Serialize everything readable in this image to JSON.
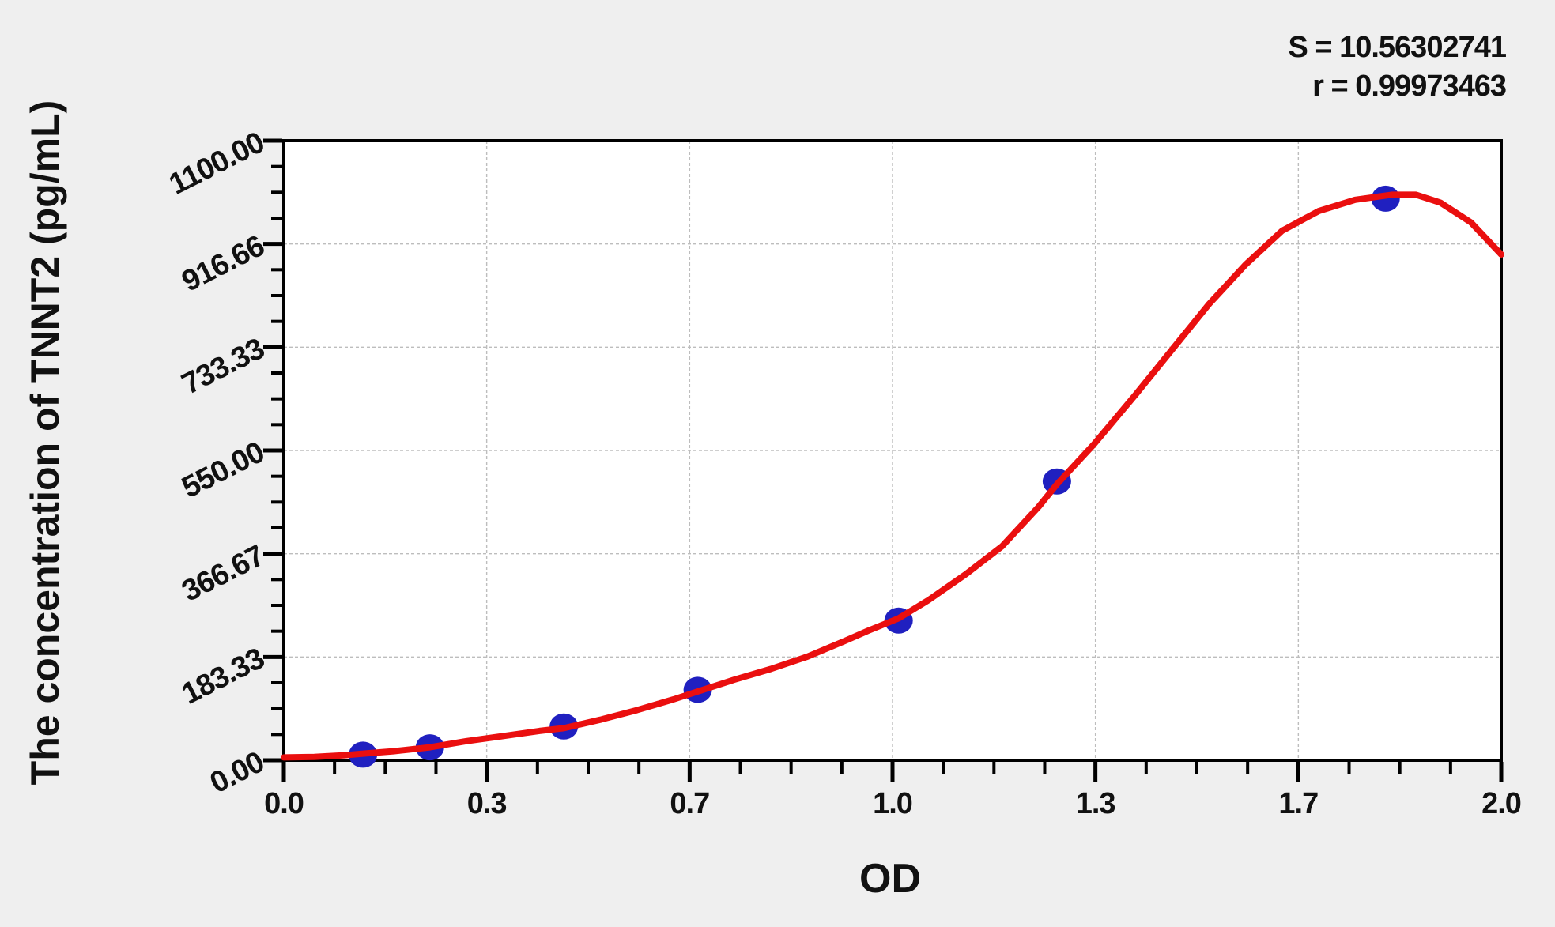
{
  "stats": {
    "s": "S = 10.56302741",
    "r": "r = 0.99973463"
  },
  "chart_data": {
    "type": "scatter",
    "title": "",
    "xlabel": "OD",
    "ylabel": "The concentration of TNNT2 (pg/mL)",
    "xlim": [
      0,
      2.0
    ],
    "ylim": [
      0,
      1100
    ],
    "grid": true,
    "legend": "none",
    "x_ticks": [
      {
        "value": 0,
        "label": "0.0"
      },
      {
        "value": 0.3333,
        "label": "0.3"
      },
      {
        "value": 0.6667,
        "label": "0.7"
      },
      {
        "value": 1.0,
        "label": "1.0"
      },
      {
        "value": 1.3333,
        "label": "1.3"
      },
      {
        "value": 1.6667,
        "label": "1.7"
      },
      {
        "value": 2.0,
        "label": "2.0"
      }
    ],
    "y_ticks": [
      {
        "value": 0,
        "label": "0.00"
      },
      {
        "value": 183.33,
        "label": "183.33"
      },
      {
        "value": 366.67,
        "label": "366.67"
      },
      {
        "value": 550.0,
        "label": "550.00"
      },
      {
        "value": 733.33,
        "label": "733.33"
      },
      {
        "value": 916.66,
        "label": "916.66"
      },
      {
        "value": 1100.0,
        "label": "1100.00"
      }
    ],
    "minor_divisions_per_major": 4,
    "annotations": [
      "S = 10.56302741",
      "r = 0.99973463"
    ],
    "series": [
      {
        "name": "standard-points",
        "type": "scatter",
        "color": "#2020c0",
        "marker": "circle",
        "marker_rx": 18,
        "marker_ry": 16.5,
        "points": [
          [
            0.13,
            10
          ],
          [
            0.24,
            23
          ],
          [
            0.46,
            60
          ],
          [
            0.68,
            125
          ],
          [
            1.01,
            248
          ],
          [
            1.27,
            495
          ],
          [
            1.81,
            997
          ]
        ]
      },
      {
        "name": "fitted-curve",
        "type": "line",
        "color": "#ea0f0f",
        "stroke_width": 8,
        "points": [
          [
            0.0,
            5
          ],
          [
            0.05,
            6
          ],
          [
            0.1,
            9
          ],
          [
            0.134,
            12
          ],
          [
            0.18,
            16
          ],
          [
            0.24,
            23
          ],
          [
            0.3,
            34
          ],
          [
            0.36,
            43
          ],
          [
            0.42,
            52
          ],
          [
            0.46,
            57
          ],
          [
            0.52,
            72
          ],
          [
            0.58,
            89
          ],
          [
            0.64,
            108
          ],
          [
            0.68,
            122
          ],
          [
            0.74,
            143
          ],
          [
            0.8,
            162
          ],
          [
            0.86,
            184
          ],
          [
            0.92,
            211
          ],
          [
            0.96,
            230
          ],
          [
            1.01,
            252
          ],
          [
            1.06,
            285
          ],
          [
            1.12,
            330
          ],
          [
            1.18,
            380
          ],
          [
            1.24,
            450
          ],
          [
            1.27,
            490
          ],
          [
            1.33,
            560
          ],
          [
            1.4,
            650
          ],
          [
            1.46,
            730
          ],
          [
            1.52,
            810
          ],
          [
            1.58,
            880
          ],
          [
            1.64,
            940
          ],
          [
            1.7,
            975
          ],
          [
            1.76,
            995
          ],
          [
            1.82,
            1004
          ],
          [
            1.86,
            1004
          ],
          [
            1.9,
            990
          ],
          [
            1.95,
            955
          ],
          [
            2.0,
            898
          ]
        ]
      }
    ]
  },
  "colors": {
    "page_bg": "#efefef",
    "plot_bg": "#ffffff",
    "axis": "#000000",
    "grid": "#bdbdbd",
    "curve": "#ea0f0f",
    "marker": "#2020c0",
    "text": "#111111"
  }
}
